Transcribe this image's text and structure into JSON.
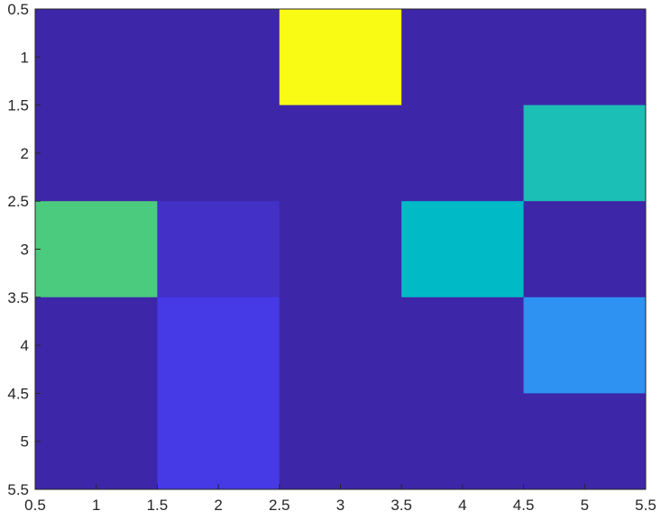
{
  "chart_data": {
    "type": "heatmap",
    "title": "",
    "xlabel": "",
    "ylabel": "",
    "x": [
      1,
      2,
      3,
      4,
      5
    ],
    "y": [
      1,
      2,
      3,
      4,
      5
    ],
    "xlim": [
      0.5,
      5.5
    ],
    "ylim": [
      0.5,
      5.5
    ],
    "y_direction": "reverse",
    "grid": false,
    "colormap": "parula",
    "clim": [
      0,
      1
    ],
    "values": [
      [
        0.0,
        0.0,
        1.0,
        0.0,
        0.0
      ],
      [
        0.0,
        0.0,
        0.0,
        0.0,
        0.55
      ],
      [
        0.65,
        0.05,
        0.0,
        0.5,
        0.0
      ],
      [
        0.0,
        0.1,
        0.0,
        0.0,
        0.3
      ],
      [
        0.0,
        0.1,
        0.0,
        0.0,
        0.0
      ]
    ],
    "x_ticks": [
      0.5,
      1,
      1.5,
      2,
      2.5,
      3,
      3.5,
      4,
      4.5,
      5,
      5.5
    ],
    "x_tick_labels": [
      "0.5",
      "1",
      "1.5",
      "2",
      "2.5",
      "3",
      "3.5",
      "4",
      "4.5",
      "5",
      "5.5"
    ],
    "y_ticks": [
      0.5,
      1,
      1.5,
      2,
      2.5,
      3,
      3.5,
      4,
      4.5,
      5,
      5.5
    ],
    "y_tick_labels": [
      "0.5",
      "1",
      "1.5",
      "2",
      "2.5",
      "3",
      "3.5",
      "4",
      "4.5",
      "5",
      "5.5"
    ]
  },
  "colors": {
    "axis": "#262626",
    "background": "#ffffff",
    "parula_low": "#3e26a8",
    "parula_high": "#f9fb15"
  }
}
